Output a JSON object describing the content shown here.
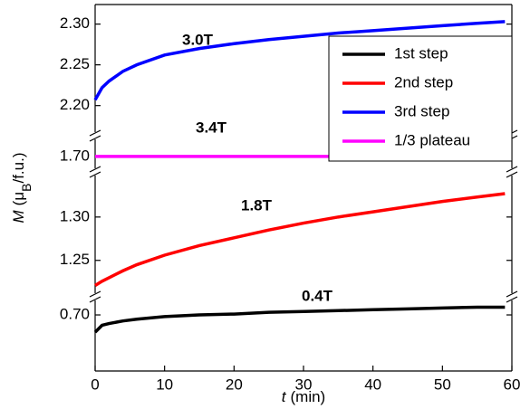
{
  "chart_data": {
    "type": "line",
    "xlabel": [
      "t",
      "(min)"
    ],
    "ylabel": [
      "M",
      "(μ",
      "B",
      "/f.u.)"
    ],
    "xlim": [
      0,
      60
    ],
    "xticks": [
      0,
      10,
      20,
      30,
      40,
      50,
      60
    ],
    "x": [
      0,
      1,
      2,
      4,
      6,
      10,
      15,
      20,
      25,
      30,
      35,
      40,
      45,
      50,
      55,
      59
    ],
    "panels": [
      {
        "ylim": [
          0.635,
          0.721
        ],
        "yticks": [
          {
            "value": 0.7,
            "label": "0.70"
          }
        ]
      },
      {
        "ylim": [
          1.208,
          1.352
        ],
        "yticks": [
          1.25,
          {
            "value": 1.3,
            "label": "1.30"
          }
        ]
      },
      {
        "ylim": [
          1.682,
          1.724
        ],
        "yticks": [
          {
            "value": 1.7,
            "label": "1.70"
          }
        ]
      },
      {
        "ylim": [
          2.163,
          2.324
        ],
        "yticks": [
          {
            "value": 2.2,
            "label": "2.20"
          },
          2.25,
          {
            "value": 2.3,
            "label": "2.30"
          }
        ]
      }
    ],
    "legend": "upper right",
    "series": [
      {
        "name": "1st step",
        "color": "#000000",
        "panel": 0,
        "annotation": "0.4T",
        "values": [
          0.68,
          0.688,
          0.69,
          0.693,
          0.695,
          0.698,
          0.7,
          0.701,
          0.703,
          0.704,
          0.705,
          0.706,
          0.707,
          0.708,
          0.709,
          0.709
        ]
      },
      {
        "name": "2nd step",
        "color": "#ff0000",
        "panel": 1,
        "annotation": "1.8T",
        "values": [
          1.221,
          1.226,
          1.23,
          1.238,
          1.245,
          1.256,
          1.267,
          1.276,
          1.285,
          1.293,
          1.3,
          1.306,
          1.312,
          1.318,
          1.323,
          1.327
        ]
      },
      {
        "name": "3rd step",
        "color": "#0000ff",
        "panel": 3,
        "annotation": "3.0T",
        "values": [
          2.207,
          2.222,
          2.23,
          2.242,
          2.25,
          2.262,
          2.27,
          2.276,
          2.281,
          2.285,
          2.289,
          2.292,
          2.295,
          2.298,
          2.301,
          2.303
        ]
      },
      {
        "name": "1/3 plateau",
        "color": "#ff00ff",
        "panel": 2,
        "annotation": "3.4T",
        "values": [
          1.7,
          1.7,
          1.7,
          1.7,
          1.7,
          1.7,
          1.7,
          1.7,
          1.7,
          1.7,
          1.7,
          1.7,
          1.7,
          1.7,
          1.7,
          1.7
        ]
      }
    ]
  }
}
